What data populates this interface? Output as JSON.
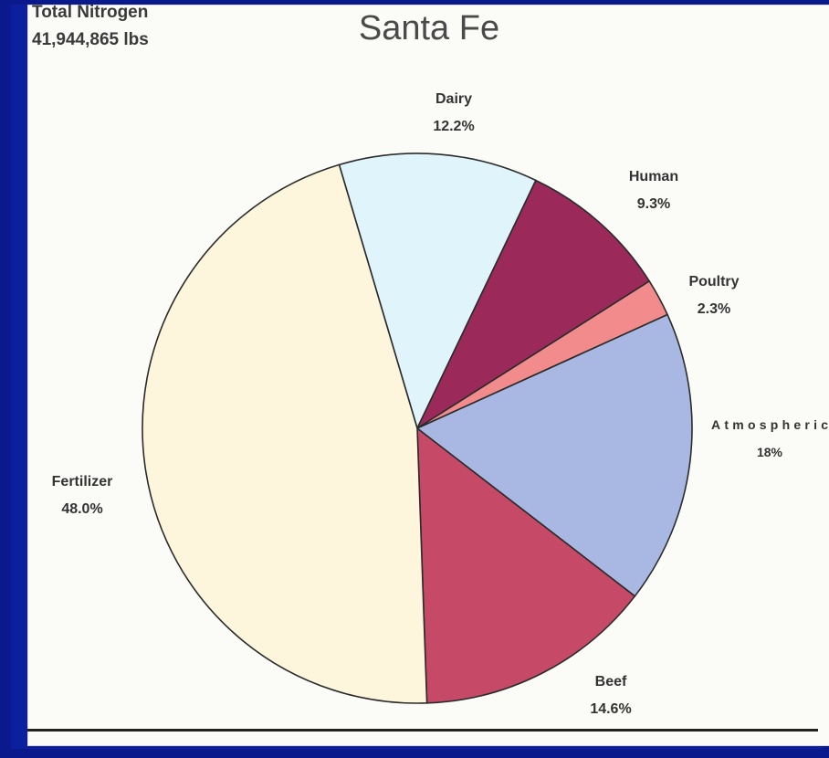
{
  "header": {
    "total_label": "Total Nitrogen",
    "total_value": "41,944,865 lbs"
  },
  "chart_data": {
    "type": "pie",
    "title": "Santa Fe",
    "start_angle_deg": -16.5,
    "slices": [
      {
        "name": "Dairy",
        "value": 12.2,
        "label": "12.2%",
        "color": "#dff4fb"
      },
      {
        "name": "Human",
        "value": 9.3,
        "label": "9.3%",
        "color": "#9b2a5a"
      },
      {
        "name": "Poultry",
        "value": 2.3,
        "label": "2.3%",
        "color": "#f28b8b"
      },
      {
        "name": "Atmospheric",
        "value": 18,
        "label": "18%",
        "color": "#a9b8e3"
      },
      {
        "name": "Beef",
        "value": 14.6,
        "label": "14.6%",
        "color": "#c64a68"
      },
      {
        "name": "Fertilizer",
        "value": 48.0,
        "label": "48.0%",
        "color": "#fdf6dc"
      }
    ]
  }
}
